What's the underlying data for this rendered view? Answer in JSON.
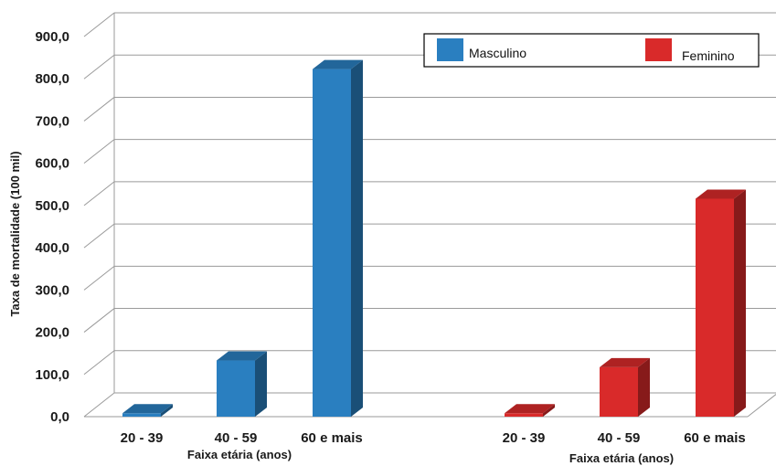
{
  "chart_data": {
    "type": "bar",
    "ylabel": "Taxa de mortalidade (100 mil)",
    "ylim": [
      0,
      900
    ],
    "yticks": [
      "0,0",
      "100,0",
      "200,0",
      "300,0",
      "400,0",
      "500,0",
      "600,0",
      "700,0",
      "800,0",
      "900,0"
    ],
    "grid": true,
    "legend_position": "top-right",
    "groups": [
      {
        "name": "Masculino",
        "color": "#2a7fc0",
        "xlabel": "Faixa etária (anos)",
        "categories": [
          "20 - 39",
          "40 - 59",
          "60 e mais"
        ],
        "values": [
          8,
          133,
          823
        ]
      },
      {
        "name": "Feminino",
        "color": "#d92a2a",
        "xlabel": "Faixa etária (anos)",
        "categories": [
          "20 - 39",
          "40 - 59",
          "60 e mais"
        ],
        "values": [
          8,
          117,
          516
        ]
      }
    ]
  }
}
